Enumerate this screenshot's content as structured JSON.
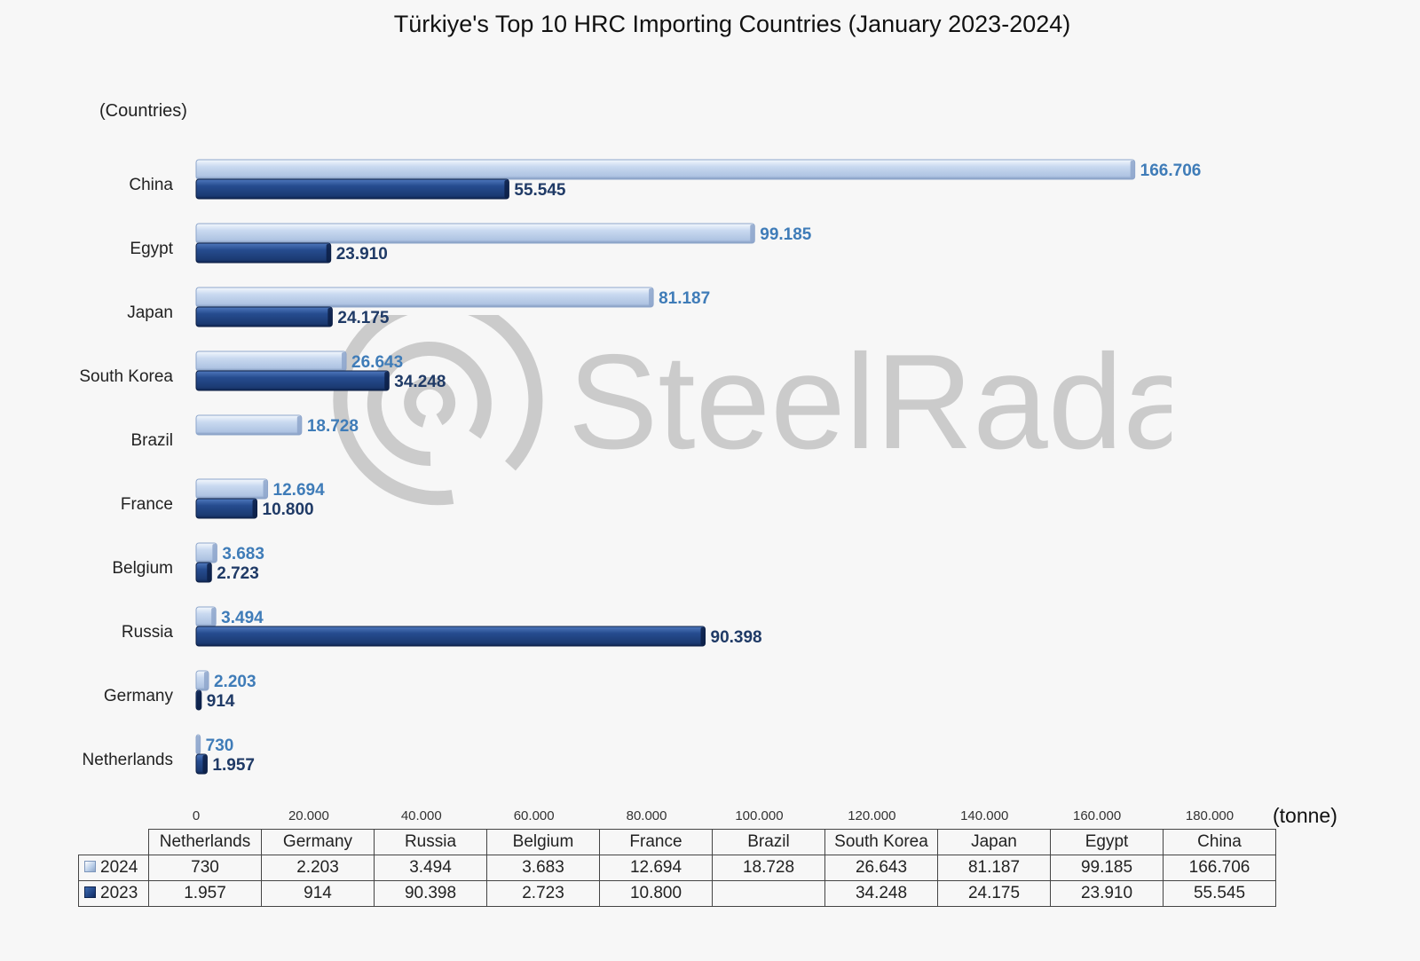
{
  "title": "Türkiye's Top 10 HRC Importing Countries (January 2023-2024)",
  "y_axis_title": "(Countries)",
  "unit_label": "(tonne)",
  "watermark_text": "SteelRadar",
  "colors": {
    "series_2024": "#c5d6ef",
    "series_2024_label": "#3f7cb8",
    "series_2023": "#1f427f",
    "series_2023_label": "#1f3a66"
  },
  "chart_data": {
    "type": "bar",
    "orientation": "horizontal",
    "title": "Türkiye's Top 10 HRC Importing Countries (January 2023-2024)",
    "ylabel": "(Countries)",
    "xlabel": "(tonne)",
    "xlim": [
      0,
      180000
    ],
    "x_ticks": [
      "0",
      "20.000",
      "40.000",
      "60.000",
      "80.000",
      "100.000",
      "120.000",
      "140.000",
      "160.000",
      "180.000"
    ],
    "x_tick_values": [
      0,
      20000,
      40000,
      60000,
      80000,
      100000,
      120000,
      140000,
      160000,
      180000
    ],
    "categories": [
      "China",
      "Egypt",
      "Japan",
      "South Korea",
      "Brazil",
      "France",
      "Belgium",
      "Russia",
      "Germany",
      "Netherlands"
    ],
    "series": [
      {
        "name": "2024",
        "values": [
          166706,
          99185,
          81187,
          26643,
          18728,
          12694,
          3683,
          3494,
          2203,
          730
        ],
        "labels": [
          "166.706",
          "99.185",
          "81.187",
          "26.643",
          "18.728",
          "12.694",
          "3.683",
          "3.494",
          "2.203",
          "730"
        ]
      },
      {
        "name": "2023",
        "values": [
          55545,
          23910,
          24175,
          34248,
          null,
          10800,
          2723,
          90398,
          914,
          1957
        ],
        "labels": [
          "55.545",
          "23.910",
          "24.175",
          "34.248",
          "",
          "10.800",
          "2.723",
          "90.398",
          "914",
          "1.957"
        ]
      }
    ],
    "legend": "data table below chart",
    "grid": false
  },
  "table": {
    "columns": [
      "Netherlands",
      "Germany",
      "Russia",
      "Belgium",
      "France",
      "Brazil",
      "South Korea",
      "Japan",
      "Egypt",
      "China"
    ],
    "rows": [
      {
        "label": "2024",
        "cells": [
          "730",
          "2.203",
          "3.494",
          "3.683",
          "12.694",
          "18.728",
          "26.643",
          "81.187",
          "99.185",
          "166.706"
        ]
      },
      {
        "label": "2023",
        "cells": [
          "1.957",
          "914",
          "90.398",
          "2.723",
          "10.800",
          "",
          "34.248",
          "24.175",
          "23.910",
          "55.545"
        ]
      }
    ]
  }
}
